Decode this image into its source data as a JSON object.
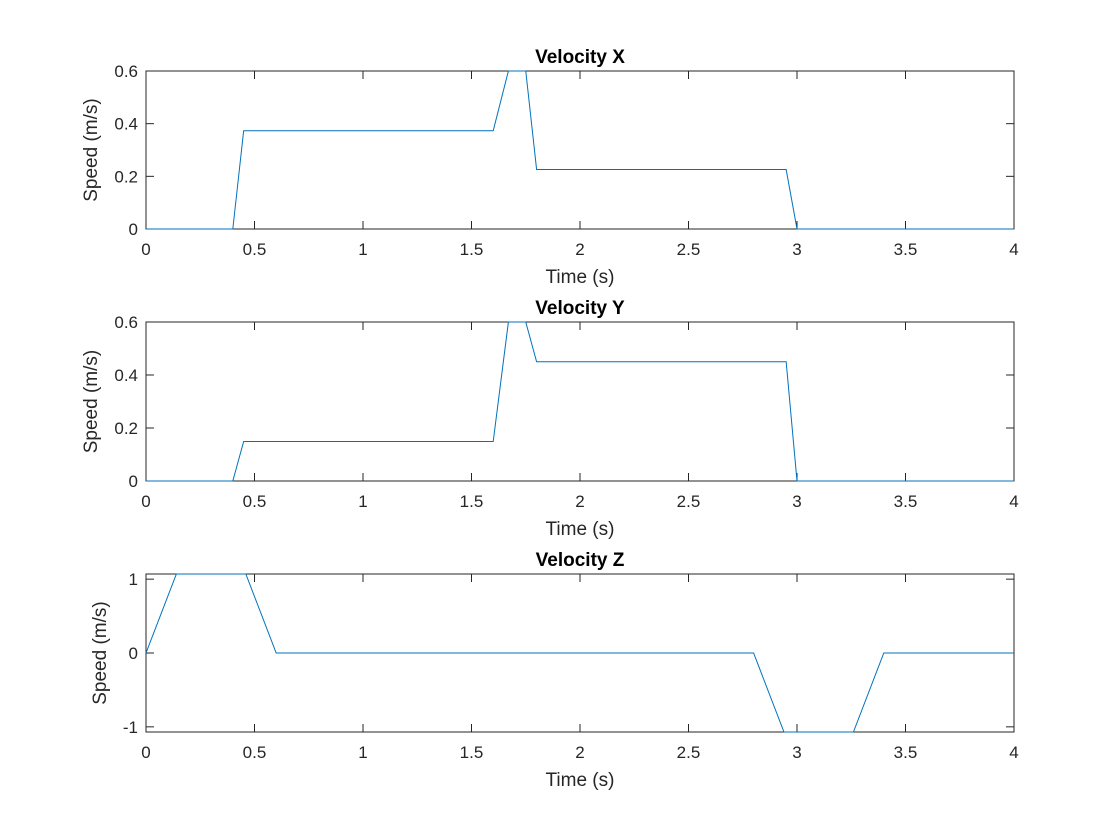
{
  "chart_data": [
    {
      "type": "line",
      "title": "Velocity X",
      "xlabel": "Time (s)",
      "ylabel": "Speed (m/s)",
      "xlim": [
        0,
        4
      ],
      "ylim": [
        0,
        0.6
      ],
      "xticks": [
        0,
        0.5,
        1,
        1.5,
        2,
        2.5,
        3,
        3.5,
        4
      ],
      "xtick_labels": [
        "0",
        "0.5",
        "1",
        "1.5",
        "2",
        "2.5",
        "3",
        "3.5",
        "4"
      ],
      "yticks": [
        0,
        0.2,
        0.4,
        0.6
      ],
      "ytick_labels": [
        "0",
        "0.2",
        "0.4",
        "0.6"
      ],
      "color": "#0072BD",
      "series": [
        {
          "x": [
            0,
            0.4,
            0.45,
            1.6,
            1.67,
            1.75,
            1.8,
            2.95,
            3.0,
            4.0
          ],
          "y": [
            0,
            0,
            0.373,
            0.373,
            0.6,
            0.6,
            0.226,
            0.226,
            0,
            0
          ]
        }
      ]
    },
    {
      "type": "line",
      "title": "Velocity Y",
      "xlabel": "Time (s)",
      "ylabel": "Speed (m/s)",
      "xlim": [
        0,
        4
      ],
      "ylim": [
        0,
        0.6
      ],
      "xticks": [
        0,
        0.5,
        1,
        1.5,
        2,
        2.5,
        3,
        3.5,
        4
      ],
      "xtick_labels": [
        "0",
        "0.5",
        "1",
        "1.5",
        "2",
        "2.5",
        "3",
        "3.5",
        "4"
      ],
      "yticks": [
        0,
        0.2,
        0.4,
        0.6
      ],
      "ytick_labels": [
        "0",
        "0.2",
        "0.4",
        "0.6"
      ],
      "color": "#0072BD",
      "series": [
        {
          "x": [
            0,
            0.4,
            0.45,
            1.6,
            1.67,
            1.75,
            1.8,
            2.95,
            3.0,
            4.0
          ],
          "y": [
            0,
            0,
            0.149,
            0.149,
            0.6,
            0.6,
            0.45,
            0.45,
            0,
            0
          ]
        }
      ]
    },
    {
      "type": "line",
      "title": "Velocity Z",
      "xlabel": "Time (s)",
      "ylabel": "Speed (m/s)",
      "xlim": [
        0,
        4
      ],
      "ylim": [
        -1.07,
        1.07
      ],
      "xticks": [
        0,
        0.5,
        1,
        1.5,
        2,
        2.5,
        3,
        3.5,
        4
      ],
      "xtick_labels": [
        "0",
        "0.5",
        "1",
        "1.5",
        "2",
        "2.5",
        "3",
        "3.5",
        "4"
      ],
      "yticks": [
        -1,
        0,
        1
      ],
      "ytick_labels": [
        "-1",
        "0",
        "1"
      ],
      "color": "#0072BD",
      "series": [
        {
          "x": [
            0,
            0.14,
            0.46,
            0.6,
            2.8,
            2.94,
            3.26,
            3.4,
            4.0
          ],
          "y": [
            0,
            1.07,
            1.07,
            0,
            0,
            -1.07,
            -1.07,
            0,
            0
          ]
        }
      ]
    }
  ]
}
